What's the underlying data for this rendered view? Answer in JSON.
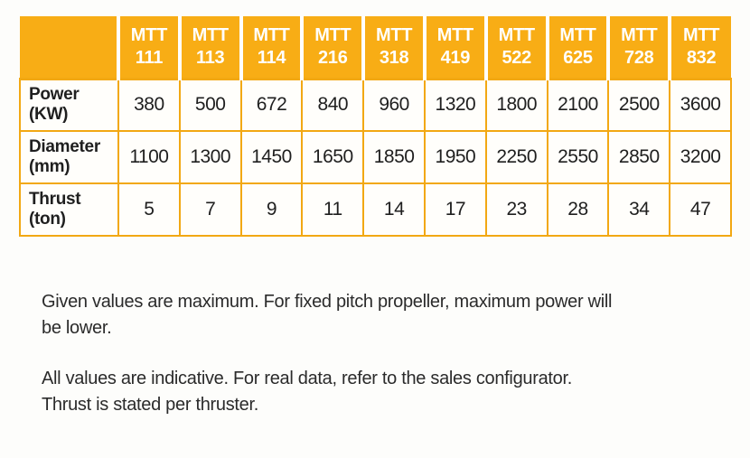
{
  "table": {
    "corner_label": "",
    "columns": [
      "MTT\n111",
      "MTT\n113",
      "MTT\n114",
      "MTT\n216",
      "MTT\n318",
      "MTT\n419",
      "MTT\n522",
      "MTT\n625",
      "MTT\n728",
      "MTT\n832"
    ],
    "rows": [
      {
        "label": "Power\n(KW)",
        "values": [
          380,
          500,
          672,
          840,
          960,
          1320,
          1800,
          2100,
          2500,
          3600
        ]
      },
      {
        "label": "Diameter\n(mm)",
        "values": [
          1100,
          1300,
          1450,
          1650,
          1850,
          1950,
          2250,
          2550,
          2850,
          3200
        ]
      },
      {
        "label": "Thrust\n(ton)",
        "values": [
          5,
          7,
          9,
          11,
          14,
          17,
          23,
          28,
          34,
          47
        ]
      }
    ]
  },
  "notes": [
    "Given values are maximum. For fixed pitch propeller, maximum power will\nbe lower.",
    "All values are indicative. For real data, refer to the sales configurator.\nThrust is stated per thruster."
  ],
  "colors": {
    "header_bg": "#F8AD15",
    "border": "#F2A813",
    "header_text": "#FFFFFF",
    "body_text": "#1F1F1F"
  }
}
